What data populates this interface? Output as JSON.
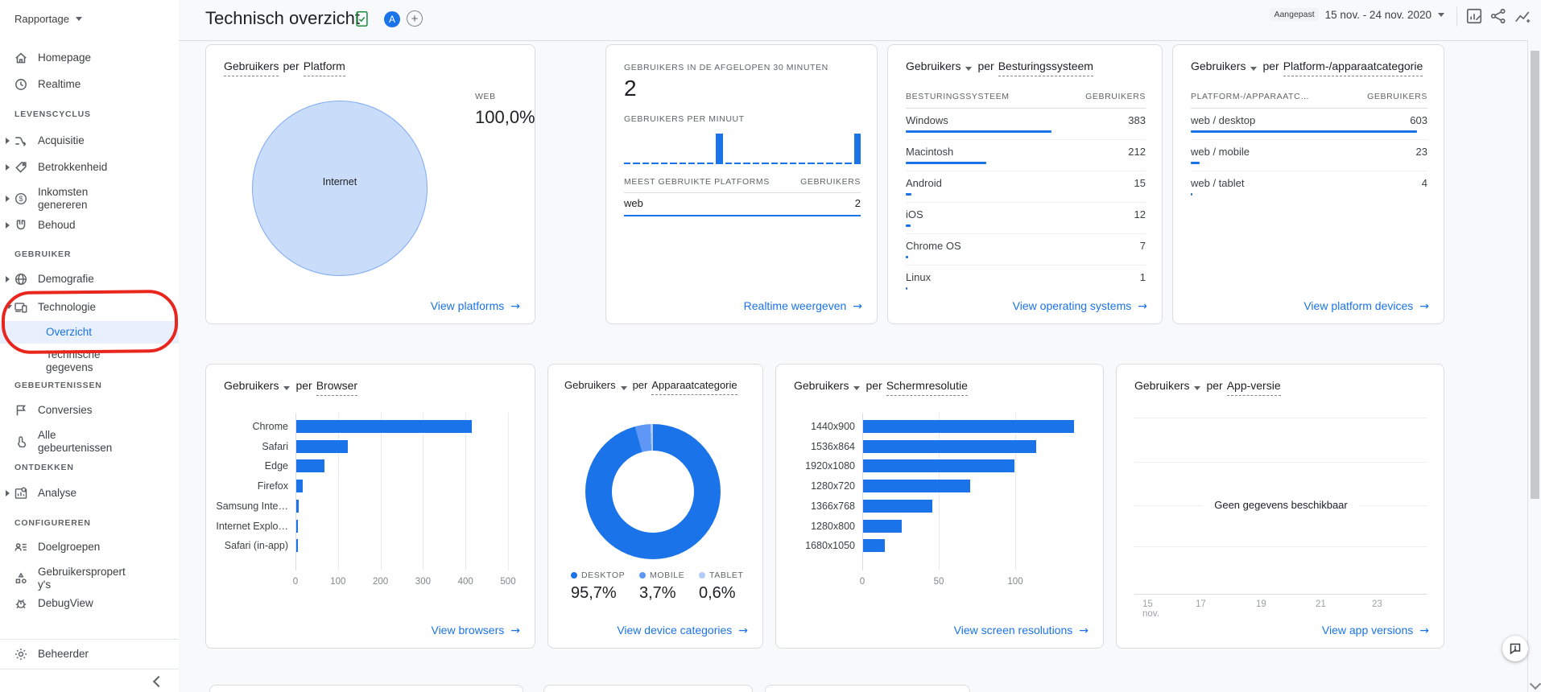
{
  "colors": {
    "accent_blue": "#1a73e8",
    "mobile_blue": "#5e97f6",
    "tablet_blue": "#aecbfa",
    "pie_fill": "#c9dcf9",
    "pie_stroke": "#7faaf5",
    "annotation_red": "#e8261d"
  },
  "topbar": {
    "title": "Technisch overzicht",
    "avatar_letter": "A",
    "date_label": "Aangepast",
    "date_range": "15 nov. - 24 nov. 2020"
  },
  "sidebar": {
    "report_switcher": "Rapportage",
    "items": {
      "homepage": "Homepage",
      "realtime": "Realtime",
      "sec_levenscyclus": "LEVENSCYCLUS",
      "acquisitie": "Acquisitie",
      "betrokkenheid": "Betrokkenheid",
      "inkomsten": "Inkomsten genereren",
      "behoud": "Behoud",
      "sec_gebruiker": "GEBRUIKER",
      "demografie": "Demografie",
      "technologie": "Technologie",
      "overzicht": "Overzicht",
      "technische": "Technische gegevens",
      "sec_gebeurtenissen": "GEBEURTENISSEN",
      "conversies": "Conversies",
      "alle_gebeurtenissen": "Alle gebeurtenissen",
      "sec_ontdekken": "ONTDEKKEN",
      "analyse": "Analyse",
      "sec_configureren": "CONFIGUREREN",
      "doelgroepen": "Doelgroepen",
      "gebruikersproperties": "Gebruikersproperty's",
      "debugview": "DebugView",
      "beheerder": "Beheerder"
    }
  },
  "cards": {
    "platform": {
      "title_dim": "Gebruikers",
      "title_mid": "per",
      "title_metric": "Platform",
      "slice_label": "Internet",
      "legend_label": "WEB",
      "legend_value": "100,0%",
      "link": "View platforms"
    },
    "realtime": {
      "heading": "GEBRUIKERS IN DE AFGELOPEN 30 MINUTEN",
      "count": "2",
      "per_minute_label": "GEBRUIKERS PER MINUUT",
      "spark": [
        0,
        0,
        0,
        0,
        0,
        0,
        0,
        0,
        0,
        0,
        2,
        0,
        0,
        0,
        0,
        0,
        0,
        0,
        0,
        0,
        0,
        0,
        0,
        0,
        0,
        2
      ],
      "table_header": [
        "MEEST GEBRUIKTE PLATFORMS",
        "GEBRUIKERS"
      ],
      "row": {
        "label": "web",
        "value": "2"
      },
      "link": "Realtime weergeven"
    },
    "os": {
      "selector": "Gebruikers",
      "title_mid": "per",
      "title_dim": "Besturingssysteem",
      "col_dim": "BESTURINGSSYSTEEM",
      "col_metric": "GEBRUIKERS",
      "rows": [
        {
          "label": "Windows",
          "value": 383
        },
        {
          "label": "Macintosh",
          "value": 212
        },
        {
          "label": "Android",
          "value": 15
        },
        {
          "label": "iOS",
          "value": 12
        },
        {
          "label": "Chrome OS",
          "value": 7
        },
        {
          "label": "Linux",
          "value": 1
        }
      ],
      "link": "View operating systems"
    },
    "platform_device": {
      "selector": "Gebruikers",
      "title_mid": "per",
      "title_dim": "Platform-/apparaatcategorie",
      "col_dim": "PLATFORM-/APPARAATC…",
      "col_metric": "GEBRUIKERS",
      "rows": [
        {
          "label": "web / desktop",
          "value": 603
        },
        {
          "label": "web / mobile",
          "value": 23
        },
        {
          "label": "web / tablet",
          "value": 4
        }
      ],
      "link": "View platform devices"
    },
    "browser": {
      "selector": "Gebruikers",
      "title_mid": "per",
      "title_dim": "Browser",
      "chart_data": {
        "type": "bar",
        "categories": [
          "Chrome",
          "Safari",
          "Edge",
          "Firefox",
          "Samsung Inte…",
          "Internet Explo…",
          "Safari (in-app)"
        ],
        "values": [
          412,
          122,
          66,
          16,
          5,
          3,
          1
        ],
        "xticks": [
          0,
          100,
          200,
          300,
          400,
          500
        ],
        "xmax": 520
      },
      "link": "View browsers"
    },
    "device_category": {
      "selector": "Gebruikers",
      "title_mid": "per",
      "title_dim": "Apparaatcategorie",
      "chart_data": {
        "type": "donut",
        "slices": [
          {
            "label": "DESKTOP",
            "pct": 95.7,
            "display": "95,7%"
          },
          {
            "label": "MOBILE",
            "pct": 3.7,
            "display": "3,7%"
          },
          {
            "label": "TABLET",
            "pct": 0.6,
            "display": "0,6%"
          }
        ]
      },
      "link": "View device categories"
    },
    "resolution": {
      "selector": "Gebruikers",
      "title_mid": "per",
      "title_dim": "Schermresolutie",
      "chart_data": {
        "type": "bar",
        "categories": [
          "1440x900",
          "1536x864",
          "1920x1080",
          "1280x720",
          "1366x768",
          "1280x800",
          "1680x1050"
        ],
        "values": [
          138,
          113,
          99,
          70,
          45,
          25,
          14
        ],
        "xticks": [
          0,
          50,
          100
        ],
        "xmax": 145
      },
      "link": "View screen resolutions"
    },
    "app_version": {
      "selector": "Gebruikers",
      "title_mid": "per",
      "title_dim": "App-versie",
      "empty_text": "Geen gegevens beschikbaar",
      "x_labels": [
        "15",
        "17",
        "19",
        "21",
        "23"
      ],
      "x_sublabel": "nov.",
      "link": "View app versions"
    }
  }
}
